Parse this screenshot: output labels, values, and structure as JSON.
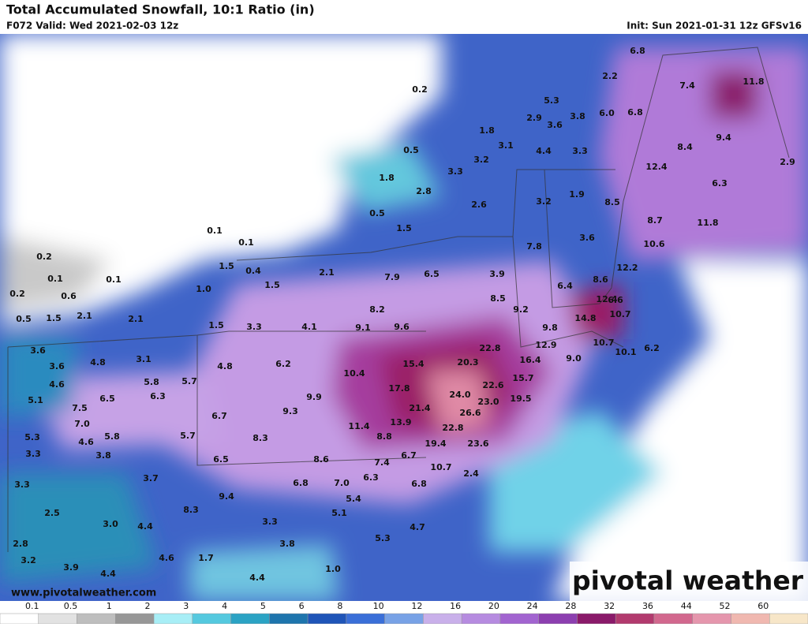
{
  "header": {
    "title": "Total Accumulated Snowfall, 10:1 Ratio (in)",
    "valid": "F072 Valid: Wed 2021-02-03 12z",
    "init": "Init: Sun 2021-01-31 12z GFSv16",
    "website": "www.pivotalweather.com",
    "logo": "pivotal weather"
  },
  "map": {
    "labels": [
      "0.2",
      "6.8",
      "2.2",
      "11.8",
      "7.4",
      "5.3",
      "2.9",
      "3.8",
      "6.0",
      "6.8",
      "1.8",
      "3.6",
      "3.1",
      "4.4",
      "3.3",
      "8.4",
      "9.4",
      "0.5",
      "3.2",
      "2.9",
      "12.4",
      "1.8",
      "3.3",
      "2.8",
      "6.3",
      "1.9",
      "2.6",
      "3.2",
      "8.5",
      "0.5",
      "1.5",
      "8.7",
      "11.8",
      "0.1",
      "0.1",
      "7.8",
      "3.6",
      "10.6",
      "1.5",
      "0.4",
      "0.2",
      "12.2",
      "2.1",
      "7.9",
      "6.5",
      "3.9",
      "8.6",
      "6.4",
      "0.1",
      "0.1",
      "1.0",
      "1.5",
      "0.2",
      "0.6",
      "8.5",
      "12.4",
      "6.6",
      "8.2",
      "9.2",
      "10.7",
      "14.8",
      "0.5",
      "1.5",
      "2.1",
      "2.1",
      "1.5",
      "3.3",
      "4.1",
      "9.1",
      "9.6",
      "9.8",
      "10.7",
      "6.2",
      "22.8",
      "12.9",
      "3.6",
      "4.8",
      "3.1",
      "15.4",
      "20.3",
      "16.4",
      "9.0",
      "10.1",
      "3.6",
      "6.2",
      "4.8",
      "10.4",
      "4.6",
      "5.8",
      "5.7",
      "15.7",
      "6.3",
      "17.8",
      "24.0",
      "22.6",
      "19.5",
      "5.1",
      "6.5",
      "9.9",
      "23.0",
      "7.5",
      "6.7",
      "9.3",
      "21.4",
      "26.6",
      "7.0",
      "11.4",
      "13.9",
      "22.8",
      "5.3",
      "4.6",
      "5.8",
      "5.7",
      "8.3",
      "8.8",
      "19.4",
      "23.6",
      "3.3",
      "3.8",
      "6.5",
      "8.6",
      "7.4",
      "6.7",
      "10.7",
      "2.4",
      "6.3",
      "3.7",
      "6.8",
      "7.0",
      "6.8",
      "3.3",
      "9.4",
      "5.4",
      "8.3",
      "2.5",
      "5.1",
      "3.0",
      "4.4",
      "3.3",
      "4.7",
      "5.3",
      "3.8",
      "2.8",
      "3.2",
      "4.6",
      "1.7",
      "3.9",
      "4.4",
      "1.0",
      "4.4"
    ]
  },
  "legend": {
    "ticks": [
      0.1,
      0.5,
      1,
      2,
      3,
      4,
      5,
      6,
      8,
      10,
      12,
      16,
      20,
      24,
      28,
      32,
      36,
      44,
      52,
      60
    ],
    "colors": [
      "#ffffff",
      "#e2e2e2",
      "#bebebe",
      "#979797",
      "#a8eef6",
      "#55c9df",
      "#2ba3c4",
      "#1e75ad",
      "#1f55b8",
      "#3a6fd8",
      "#78a2e6",
      "#c9b0ea",
      "#b68be0",
      "#a264d0",
      "#8c3fb0",
      "#8a1a6a",
      "#b23a6e",
      "#d2688e",
      "#e596ad",
      "#f0b8b0",
      "#f7e6c8"
    ]
  }
}
